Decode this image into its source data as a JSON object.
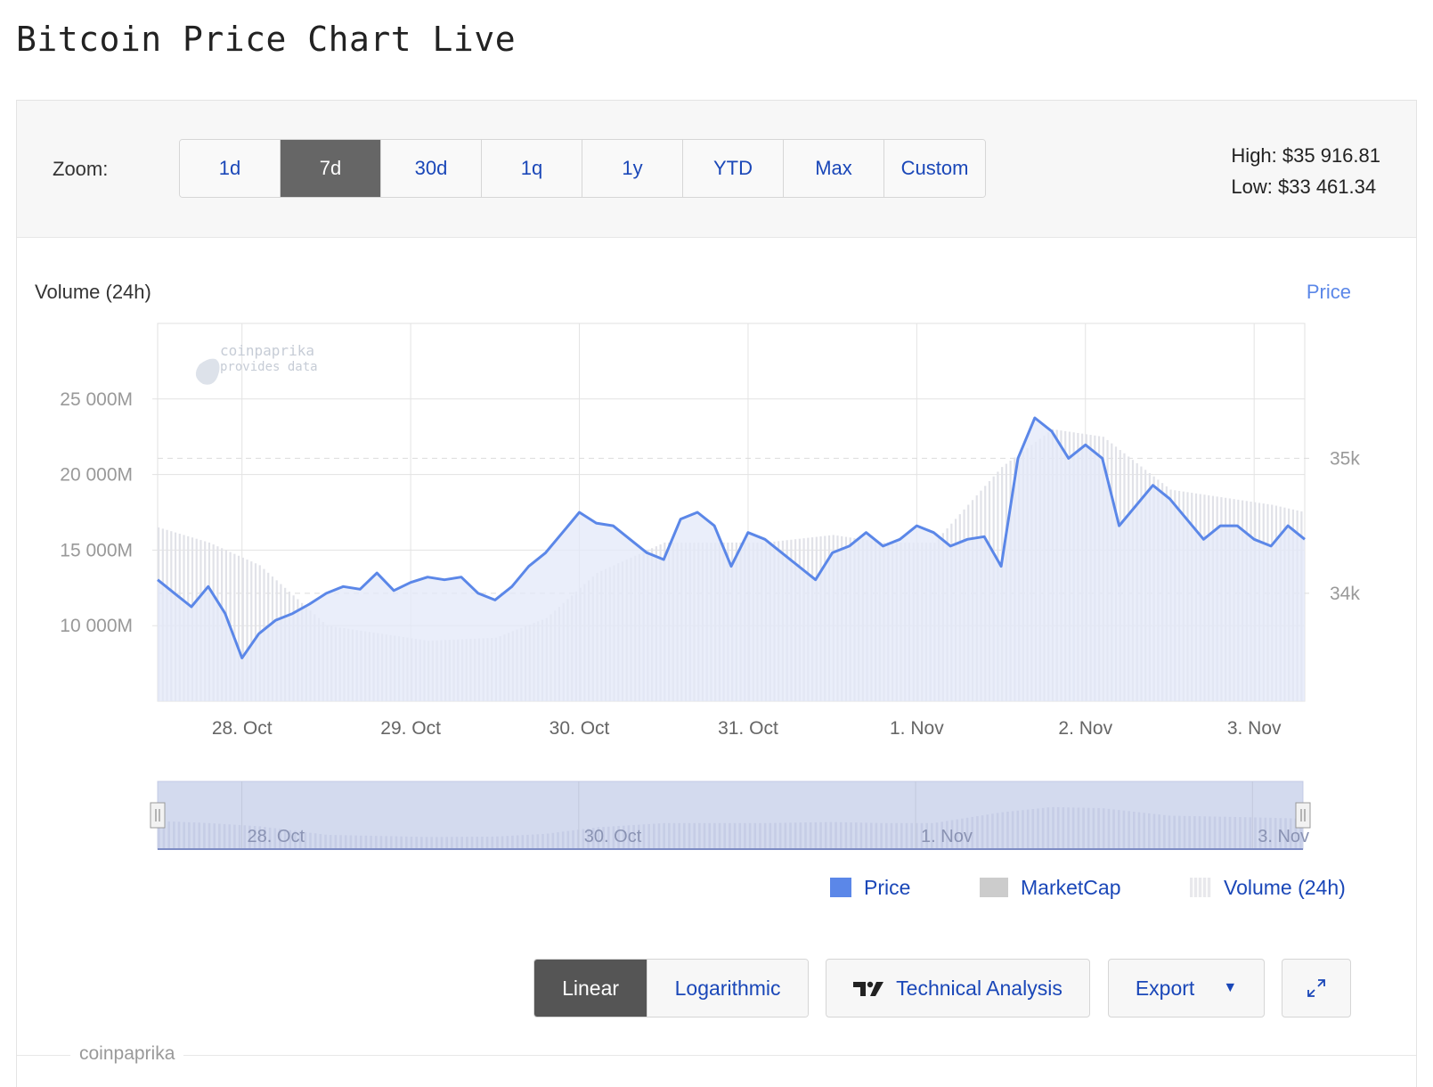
{
  "page": {
    "title": "Bitcoin Price Chart Live"
  },
  "toolbar": {
    "zoom_label": "Zoom:",
    "zoom_options": [
      "1d",
      "7d",
      "30d",
      "1q",
      "1y",
      "YTD",
      "Max",
      "Custom"
    ],
    "zoom_selected": "7d",
    "high_label": "High: $35 916.81",
    "low_label": "Low: $33 461.34"
  },
  "chart_data": {
    "type": "line",
    "left_axis_title": "Volume (24h)",
    "right_axis_title": "Price",
    "x_ticks": [
      "28. Oct",
      "29. Oct",
      "30. Oct",
      "31. Oct",
      "1. Nov",
      "2. Nov",
      "3. Nov"
    ],
    "left_ticks": [
      "10 000M",
      "15 000M",
      "20 000M",
      "25 000M"
    ],
    "right_ticks": [
      "34k",
      "35k"
    ],
    "left_ylim": [
      5000,
      30000
    ],
    "right_ylim": [
      33200,
      36000
    ],
    "x_range": [
      "27 Oct 12:00",
      "3 Nov 08:00"
    ],
    "watermark": {
      "name": "coinpaprika",
      "sub": "provides data"
    },
    "colors": {
      "price": "#5b87e8",
      "price_fill": "#e3e8f8",
      "volume": "#e1e2e8",
      "marketcap": "#cccccc"
    },
    "series": [
      {
        "name": "Price",
        "x_days": [
          0,
          0.1,
          0.2,
          0.3,
          0.4,
          0.5,
          0.6,
          0.7,
          0.8,
          0.9,
          1.0,
          1.1,
          1.2,
          1.3,
          1.4,
          1.5,
          1.6,
          1.7,
          1.8,
          1.9,
          2.0,
          2.1,
          2.2,
          2.3,
          2.4,
          2.5,
          2.6,
          2.7,
          2.8,
          2.9,
          3.0,
          3.1,
          3.2,
          3.3,
          3.4,
          3.5,
          3.6,
          3.7,
          3.8,
          3.9,
          4.0,
          4.1,
          4.2,
          4.3,
          4.4,
          4.5,
          4.6,
          4.7,
          4.8,
          4.9,
          5.0,
          5.1,
          5.2,
          5.3,
          5.4,
          5.5,
          5.6,
          5.7,
          5.8,
          5.9,
          6.0,
          6.1,
          6.2,
          6.3,
          6.4,
          6.5,
          6.6,
          6.7,
          6.8,
          6.85,
          6.95,
          7.0
        ],
        "values": [
          34100,
          34000,
          33900,
          34050,
          33850,
          33520,
          33700,
          33800,
          33850,
          33920,
          34000,
          34050,
          34030,
          34150,
          34020,
          34080,
          34120,
          34100,
          34120,
          34000,
          33950,
          34050,
          34200,
          34300,
          34450,
          34600,
          34520,
          34500,
          34400,
          34300,
          34250,
          34550,
          34600,
          34500,
          34200,
          34450,
          34400,
          34300,
          34200,
          34100,
          34300,
          34350,
          34450,
          34350,
          34400,
          34500,
          34450,
          34350,
          34400,
          34420,
          34200,
          35000,
          35300,
          35200,
          35000,
          35100,
          35000,
          34500,
          34650,
          34800,
          34700,
          34550,
          34400,
          34500,
          34500,
          34400,
          34350,
          34500,
          34400,
          34380,
          34300,
          34250
        ]
      },
      {
        "name": "MarketCap",
        "values": []
      },
      {
        "name": "Volume (24h)",
        "x_days": [
          0,
          0.3,
          0.6,
          1.0,
          1.3,
          1.6,
          2.0,
          2.3,
          2.6,
          3.0,
          3.3,
          3.6,
          4.0,
          4.3,
          4.6,
          5.0,
          5.3,
          5.6,
          6.0,
          6.3,
          6.6,
          7.0
        ],
        "values": [
          16500,
          15500,
          14000,
          10000,
          9500,
          9000,
          9200,
          10500,
          13500,
          15500,
          15500,
          15500,
          16000,
          15500,
          15500,
          20500,
          23000,
          22500,
          19000,
          18500,
          18000,
          17000
        ]
      }
    ]
  },
  "navigator": {
    "labels": [
      "28. Oct",
      "30. Oct",
      "1. Nov",
      "3. Nov"
    ]
  },
  "legend": {
    "items": [
      "Price",
      "MarketCap",
      "Volume (24h)"
    ]
  },
  "controls": {
    "linear": "Linear",
    "logarithmic": "Logarithmic",
    "technical_analysis": "Technical Analysis",
    "export": "Export"
  },
  "footer": {
    "source": "coinpaprika"
  }
}
